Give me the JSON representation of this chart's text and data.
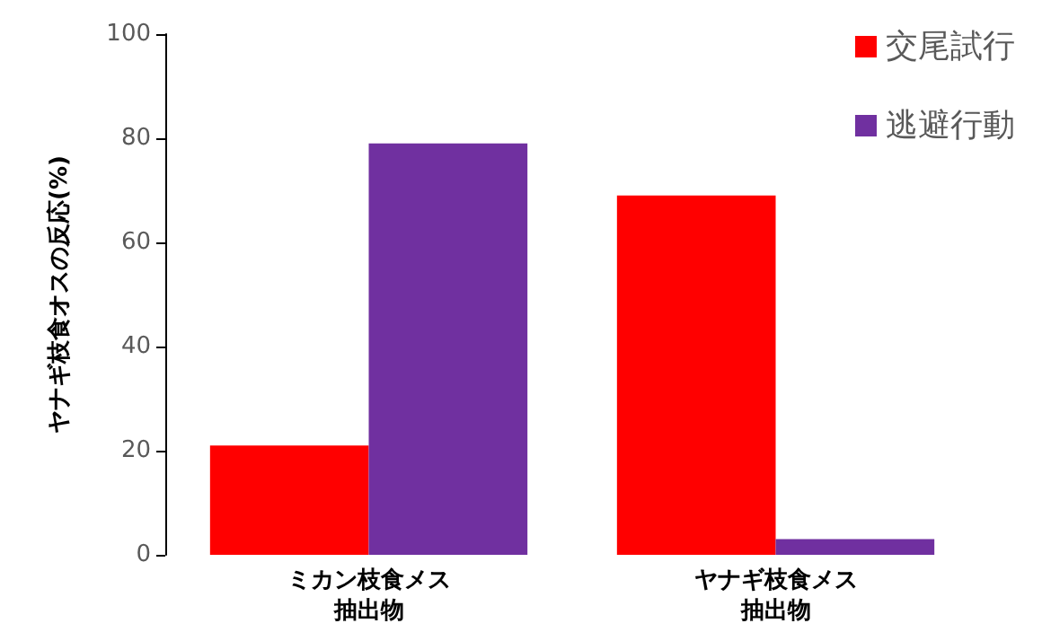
{
  "chart_data": {
    "type": "bar",
    "ylabel": "ヤナギ枝食オスの反応(%)",
    "categories": [
      "ミカン枝食メス抽出物",
      "ヤナギ枝食メス抽出物"
    ],
    "series": [
      {
        "name": "交尾試行",
        "color": "#ff0000",
        "values": [
          21,
          69
        ]
      },
      {
        "name": "逃避行動",
        "color": "#7030a0",
        "values": [
          79,
          3
        ]
      }
    ],
    "ylim": [
      0,
      100
    ],
    "yticks": [
      0,
      20,
      40,
      60,
      80,
      100
    ],
    "grid": false,
    "legend": "top right"
  }
}
